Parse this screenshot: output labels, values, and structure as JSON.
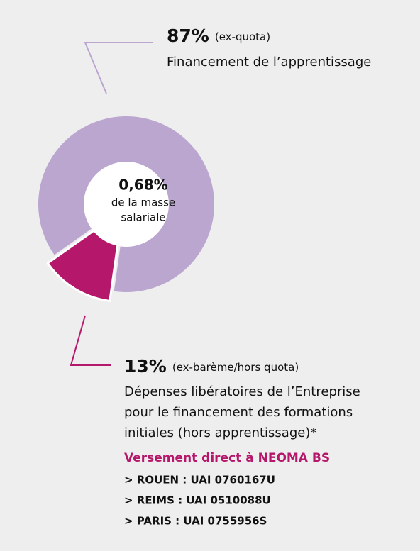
{
  "chart_data": {
    "type": "pie",
    "donut": true,
    "values": [
      87,
      13
    ],
    "value_labels": [
      "87%",
      "13%"
    ],
    "colors": [
      "#bba6d0",
      "#b5186b"
    ],
    "categories": [
      "(ex-quota)",
      "(ex-barème/hors quota)"
    ],
    "descriptions": [
      [
        "Financement de l’apprentissage"
      ],
      [
        "Dépenses libératoires de l’Entreprise",
        "pour le financement des formations",
        "initiales (hors apprentissage)*"
      ]
    ],
    "center_label": {
      "value": "0,68%",
      "lines": [
        "de la masse",
        "salariale"
      ]
    },
    "note": {
      "title": "Versement direct à NEOMA BS",
      "items": [
        "> ROUEN : UAI 0760167U",
        "> REIMS : UAI 0510088U",
        "> PARIS : UAI 0755956S"
      ]
    }
  }
}
